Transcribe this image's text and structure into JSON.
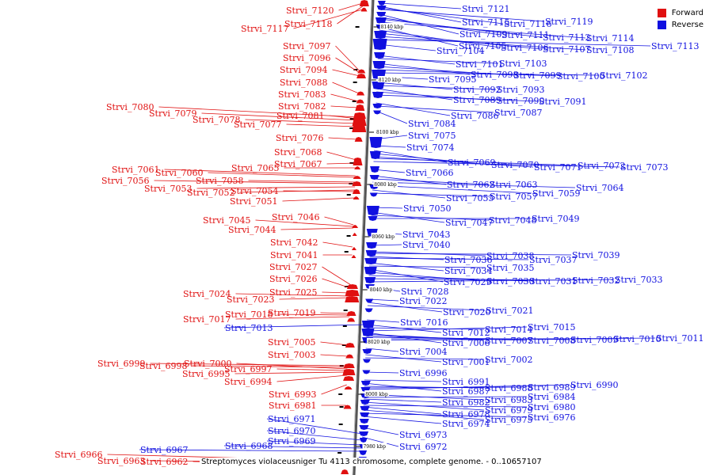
{
  "legend": {
    "forward_label": "Forward",
    "reverse_label": "Reverse",
    "forward_color": "#e01010",
    "reverse_color": "#1010e0"
  },
  "caption": "Streptomyces violaceusniger Tu 4113 chromosome, complete genome. - 0..10657107",
  "scale_ticks": [
    "8140 kbp",
    "8120 kbp",
    "8100 kbp",
    "8080 kbp",
    "8060 kbp",
    "8040 kbp",
    "8020 kbp",
    "8000 kbp",
    "7980 kbp"
  ],
  "forward_genes": [
    "Strvi_7120",
    "Strvi_7118",
    "Strvi_7117",
    "Strvi_7097",
    "Strvi_7096",
    "Strvi_7094",
    "Strvi_7088",
    "Strvi_7083",
    "Strvi_7082",
    "Strvi_7080",
    "Strvi_7079",
    "Strvi_7081",
    "Strvi_7078",
    "Strvi_7077",
    "Strvi_7076",
    "Strvi_7068",
    "Strvi_7067",
    "Strvi_7065",
    "Strvi_7061",
    "Strvi_7060",
    "Strvi_7058",
    "Strvi_7056",
    "Strvi_7053",
    "Strvi_7052",
    "Strvi_7054",
    "Strvi_7051",
    "Strvi_7046",
    "Strvi_7045",
    "Strvi_7044",
    "Strvi_7042",
    "Strvi_7041",
    "Strvi_7027",
    "Strvi_7026",
    "Strvi_7025",
    "Strvi_7024",
    "Strvi_7023",
    "Strvi_7019",
    "Strvi_7018",
    "Strvi_7017",
    "Strvi_7005",
    "Strvi_7003",
    "Strvi_6999",
    "Strvi_6998",
    "Strvi_7000",
    "Strvi_6997",
    "Strvi_6995",
    "Strvi_6994",
    "Strvi_6993",
    "Strvi_6981",
    "Strvi_6966",
    "Strvi_6963",
    "Strvi_6962"
  ],
  "reverse_genes": [
    "Strvi_7121",
    "Strvi_7115",
    "Strvi_7116",
    "Strvi_7119",
    "Strvi_7109",
    "Strvi_7111",
    "Strvi_7112",
    "Strvi_7114",
    "Strvi_7105",
    "Strvi_7106",
    "Strvi_7107",
    "Strvi_7108",
    "Strvi_7113",
    "Strvi_7104",
    "Strvi_7101",
    "Strvi_7103",
    "Strvi_7098",
    "Strvi_7099",
    "Strvi_7100",
    "Strvi_7102",
    "Strvi_7095",
    "Strvi_7092",
    "Strvi_7093",
    "Strvi_7089",
    "Strvi_7090",
    "Strvi_7091",
    "Strvi_7086",
    "Strvi_7087",
    "Strvi_7084",
    "Strvi_7075",
    "Strvi_7074",
    "Strvi_7069",
    "Strvi_7070",
    "Strvi_7071",
    "Strvi_7072",
    "Strvi_7073",
    "Strvi_7066",
    "Strvi_7062",
    "Strvi_7063",
    "Strvi_7064",
    "Strvi_7059",
    "Strvi_7055",
    "Strvi_7057",
    "Strvi_7050",
    "Strvi_7047",
    "Strvi_7048",
    "Strvi_7049",
    "Strvi_7043",
    "Strvi_7040",
    "Strvi_7038",
    "Strvi_7039",
    "Strvi_7036",
    "Strvi_7037",
    "Strvi_7034",
    "Strvi_7035",
    "Strvi_7029",
    "Strvi_7030",
    "Strvi_7031",
    "Strvi_7032",
    "Strvi_7033",
    "Strvi_7028",
    "Strvi_7022",
    "Strvi_7020",
    "Strvi_7021",
    "Strvi_7016",
    "Strvi_7013",
    "Strvi_7012",
    "Strvi_7014",
    "Strvi_7015",
    "Strvi_7006",
    "Strvi_7007",
    "Strvi_7008",
    "Strvi_7009",
    "Strvi_7010",
    "Strvi_7011",
    "Strvi_7004",
    "Strvi_7001",
    "Strvi_7002",
    "Strvi_6996",
    "Strvi_6991",
    "Strvi_6987",
    "Strvi_6988",
    "Strvi_6989",
    "Strvi_6990",
    "Strvi_6983",
    "Strvi_6984",
    "Strvi_6982",
    "Strvi_6979",
    "Strvi_6980",
    "Strvi_6978",
    "Strvi_6975",
    "Strvi_6976",
    "Strvi_6974",
    "Strvi_6973",
    "Strvi_6972",
    "Strvi_6971",
    "Strvi_6970",
    "Strvi_6969",
    "Strvi_6968",
    "Strvi_6967"
  ]
}
